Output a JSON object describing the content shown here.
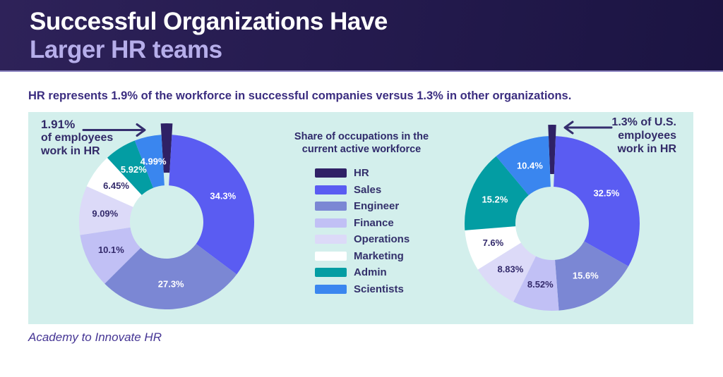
{
  "header": {
    "title_line1": "Successful Organizations Have",
    "title_line2": "Larger HR teams"
  },
  "subtitle": "HR represents 1.9% of the workforce in successful companies versus 1.3% in other organizations.",
  "legend": {
    "title_line1": "Share of occupations in the",
    "title_line2": "current active workforce",
    "items": [
      {
        "label": "HR",
        "color": "#2f2166",
        "label_text_color": "#ffffff"
      },
      {
        "label": "Sales",
        "color": "#5a5cf2",
        "label_text_color": "#ffffff"
      },
      {
        "label": "Engineer",
        "color": "#7b87d4",
        "label_text_color": "#ffffff"
      },
      {
        "label": "Finance",
        "color": "#c1c0f5",
        "label_text_color": "#332a6b"
      },
      {
        "label": "Operations",
        "color": "#dcdaf8",
        "label_text_color": "#332a6b"
      },
      {
        "label": "Marketing",
        "color": "#ffffff",
        "label_text_color": "#332a6b"
      },
      {
        "label": "Admin",
        "color": "#039da3",
        "label_text_color": "#ffffff"
      },
      {
        "label": "Scientists",
        "color": "#3a86ef",
        "label_text_color": "#ffffff"
      }
    ]
  },
  "chart_data": [
    {
      "type": "donut",
      "side": "left",
      "title": "Share of occupations in the current active workforce",
      "categories": [
        "HR",
        "Sales",
        "Engineer",
        "Finance",
        "Operations",
        "Marketing",
        "Admin",
        "Scientists"
      ],
      "values": [
        1.91,
        34.3,
        27.3,
        10.1,
        9.09,
        6.45,
        5.92,
        4.99
      ],
      "slice_labels": [
        "",
        "34.3%",
        "27.3%",
        "10.1%",
        "9.09%",
        "6.45%",
        "5.92%",
        "4.99%"
      ],
      "exploded_category": "HR",
      "annotation": {
        "line1": "1.91%",
        "line2": "of employees",
        "line3": "work in HR"
      }
    },
    {
      "type": "donut",
      "side": "right",
      "title": "Share of occupations in the current active workforce",
      "categories": [
        "HR",
        "Sales",
        "Engineer",
        "Finance",
        "Operations",
        "Marketing",
        "Admin",
        "Scientists"
      ],
      "values": [
        1.3,
        32.5,
        15.6,
        8.52,
        8.83,
        7.6,
        15.2,
        10.4
      ],
      "slice_labels": [
        "",
        "32.5%",
        "15.6%",
        "8.52%",
        "8.83%",
        "7.6%",
        "15.2%",
        "10.4%"
      ],
      "exploded_category": "HR",
      "annotation": {
        "line1": "1.3% of U.S.",
        "line2": "employees",
        "line3": "work in HR"
      }
    }
  ],
  "footer": {
    "source": "Academy to Innovate HR"
  },
  "colors": {
    "panel_bg": "#d3efec",
    "header_gradient_start": "#2e2259",
    "header_gradient_end": "#1b1442",
    "title_line2": "#b6aeea",
    "subtitle_text": "#3b2d80",
    "annotation_text": "#322a68",
    "arrow": "#352e6e"
  }
}
